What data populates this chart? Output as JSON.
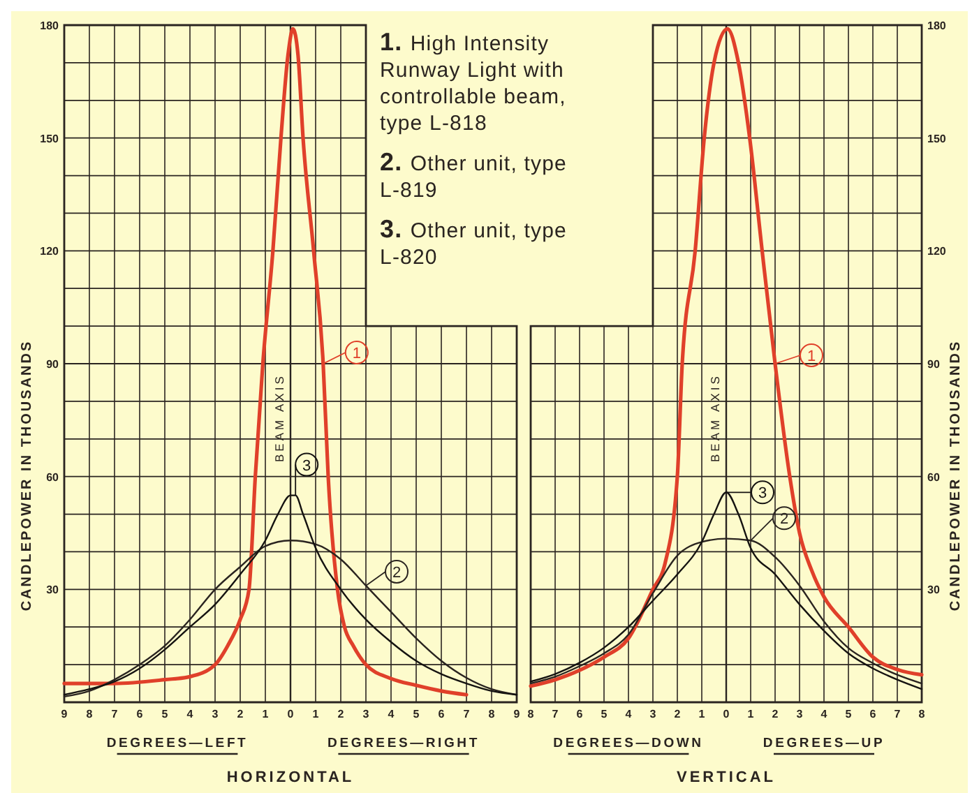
{
  "chart_data": [
    {
      "type": "line",
      "legend": "right",
      "xlabel": "HORIZONTAL",
      "ylabel": "CANDLEPOWER IN THOUSANDS",
      "grid": true,
      "xlim": [
        -9,
        9
      ],
      "ylim": [
        0,
        180
      ],
      "xticks": [
        {
          "value": -9,
          "label": "9"
        },
        {
          "value": -8,
          "label": "8"
        },
        {
          "value": -7,
          "label": "7"
        },
        {
          "value": -6,
          "label": "6"
        },
        {
          "value": -5,
          "label": "5"
        },
        {
          "value": -4,
          "label": "4"
        },
        {
          "value": -3,
          "label": "3"
        },
        {
          "value": -2,
          "label": "2"
        },
        {
          "value": -1,
          "label": "1"
        },
        0,
        1,
        2,
        3,
        4,
        5,
        6,
        7,
        8,
        9
      ],
      "yticks": [
        {
          "value": 10,
          "label": null
        },
        {
          "value": 20,
          "label": null
        },
        30,
        {
          "value": 40,
          "label": null
        },
        {
          "value": 50,
          "label": null
        },
        60,
        {
          "value": 70,
          "label": null
        },
        {
          "value": 80,
          "label": null
        },
        90,
        {
          "value": 100,
          "label": null
        },
        {
          "value": 110,
          "label": null
        },
        120,
        {
          "value": 130,
          "label": null
        },
        {
          "value": 140,
          "label": null
        },
        150,
        {
          "value": 160,
          "label": null
        },
        {
          "value": 170,
          "label": null
        },
        180
      ],
      "ref_lines": [
        {
          "axis": "x",
          "value": 0,
          "label": "BEAM AXIS"
        }
      ],
      "annotations": [
        "DEGREES—LEFT",
        "DEGREES—RIGHT",
        "1. High Intensity Runway Light with controllable beam, type L-818",
        "2. Other unit, type L-819",
        "3. Other unit, type L-820"
      ],
      "series": [
        {
          "name": "1",
          "color": "#e0402a",
          "x": [
            -9,
            -7,
            -5,
            -4,
            -3,
            -2.5,
            -2,
            -1.65,
            -1.4,
            -1.1,
            -0.7,
            -0.38,
            -0.1,
            0.1,
            0.3,
            0.5,
            0.92,
            1.3,
            1.5,
            1.87,
            2.15,
            2.5,
            3,
            4,
            5,
            6,
            7
          ],
          "values": [
            5,
            5,
            6,
            6.8,
            10,
            15,
            22,
            30,
            60,
            90,
            120,
            150,
            172,
            179,
            172,
            150,
            120,
            90,
            60,
            30,
            20,
            15,
            10,
            6.3,
            4.5,
            3,
            2
          ]
        },
        {
          "name": "2",
          "color": "#2a2420",
          "x": [
            -9,
            -8,
            -7,
            -6,
            -5,
            -4,
            -3,
            -2,
            -1,
            0,
            1,
            2,
            3,
            4,
            5,
            6,
            7,
            8,
            9
          ],
          "values": [
            1.5,
            3,
            6,
            10,
            15,
            22,
            30,
            36,
            41.5,
            43,
            42,
            38,
            31,
            24,
            17,
            11,
            6.5,
            3.5,
            2
          ]
        },
        {
          "name": "3",
          "color": "#151311",
          "x": [
            -9,
            -8,
            -7,
            -6,
            -5,
            -4,
            -3,
            -2,
            -1,
            -0.5,
            0,
            0.2,
            0.5,
            1,
            2,
            3,
            4,
            5,
            6,
            7,
            8,
            9
          ],
          "values": [
            2,
            3.5,
            5.5,
            9,
            14,
            20,
            26,
            34,
            43,
            50,
            55,
            55,
            50,
            41,
            30,
            22,
            16,
            11,
            7.5,
            5,
            3,
            2
          ]
        }
      ]
    },
    {
      "type": "line",
      "legend": "right",
      "xlabel": "VERTICAL",
      "ylabel": "CANDLEPOWER IN THOUSANDS",
      "grid": true,
      "xlim": [
        -8,
        8
      ],
      "ylim": [
        0,
        180
      ],
      "xticks": [
        {
          "value": -8,
          "label": "8"
        },
        {
          "value": -7,
          "label": "7"
        },
        {
          "value": -6,
          "label": "6"
        },
        {
          "value": -5,
          "label": "5"
        },
        {
          "value": -4,
          "label": "4"
        },
        {
          "value": -3,
          "label": "3"
        },
        {
          "value": -2,
          "label": "2"
        },
        {
          "value": -1,
          "label": "1"
        },
        0,
        1,
        2,
        3,
        4,
        5,
        6,
        7,
        8
      ],
      "yticks": [
        {
          "value": 10,
          "label": null
        },
        {
          "value": 20,
          "label": null
        },
        30,
        {
          "value": 40,
          "label": null
        },
        {
          "value": 50,
          "label": null
        },
        60,
        {
          "value": 70,
          "label": null
        },
        {
          "value": 80,
          "label": null
        },
        90,
        {
          "value": 100,
          "label": null
        },
        {
          "value": 110,
          "label": null
        },
        120,
        {
          "value": 130,
          "label": null
        },
        {
          "value": 140,
          "label": null
        },
        150,
        {
          "value": 160,
          "label": null
        },
        {
          "value": 170,
          "label": null
        },
        180
      ],
      "ref_lines": [
        {
          "axis": "x",
          "value": 0,
          "label": "BEAM AXIS"
        }
      ],
      "annotations": [
        "DEGREES—DOWN",
        "DEGREES—UP"
      ],
      "series": [
        {
          "name": "1",
          "color": "#e0402a",
          "x": [
            -8,
            -7,
            -6,
            -5,
            -4,
            -3,
            -2.5,
            -2,
            -1.8,
            -1.27,
            -0.9,
            -0.5,
            0.05,
            0.5,
            0.96,
            1.47,
            2,
            2.6,
            3,
            3.5,
            4,
            5,
            6,
            7,
            8
          ],
          "values": [
            4.3,
            6,
            8.5,
            12,
            17,
            30,
            37,
            60,
            90,
            120,
            150,
            170,
            179,
            170,
            150,
            120,
            90,
            60,
            45,
            35,
            28,
            20,
            12,
            8.7,
            7.3
          ]
        },
        {
          "name": "2",
          "color": "#2a2420",
          "x": [
            -8,
            -7,
            -6,
            -5,
            -4,
            -3,
            -2,
            -1,
            0,
            1,
            2,
            3,
            4,
            5,
            6,
            7,
            8
          ],
          "values": [
            5,
            6.8,
            9.6,
            13,
            18,
            29,
            39,
            42.6,
            43.5,
            43,
            38.6,
            31,
            21.5,
            14.4,
            10.4,
            7.3,
            5
          ]
        },
        {
          "name": "3",
          "color": "#151311",
          "x": [
            -8,
            -7,
            -6,
            -5,
            -4,
            -3,
            -2,
            -1,
            -0.5,
            0,
            0.5,
            1,
            2,
            3,
            4,
            5,
            6,
            7,
            8
          ],
          "values": [
            5.5,
            7.5,
            10.5,
            14.5,
            20,
            27,
            34,
            42.6,
            50,
            55.8,
            50,
            41,
            34,
            26,
            19,
            13,
            9,
            6,
            3.5
          ]
        }
      ]
    }
  ]
}
